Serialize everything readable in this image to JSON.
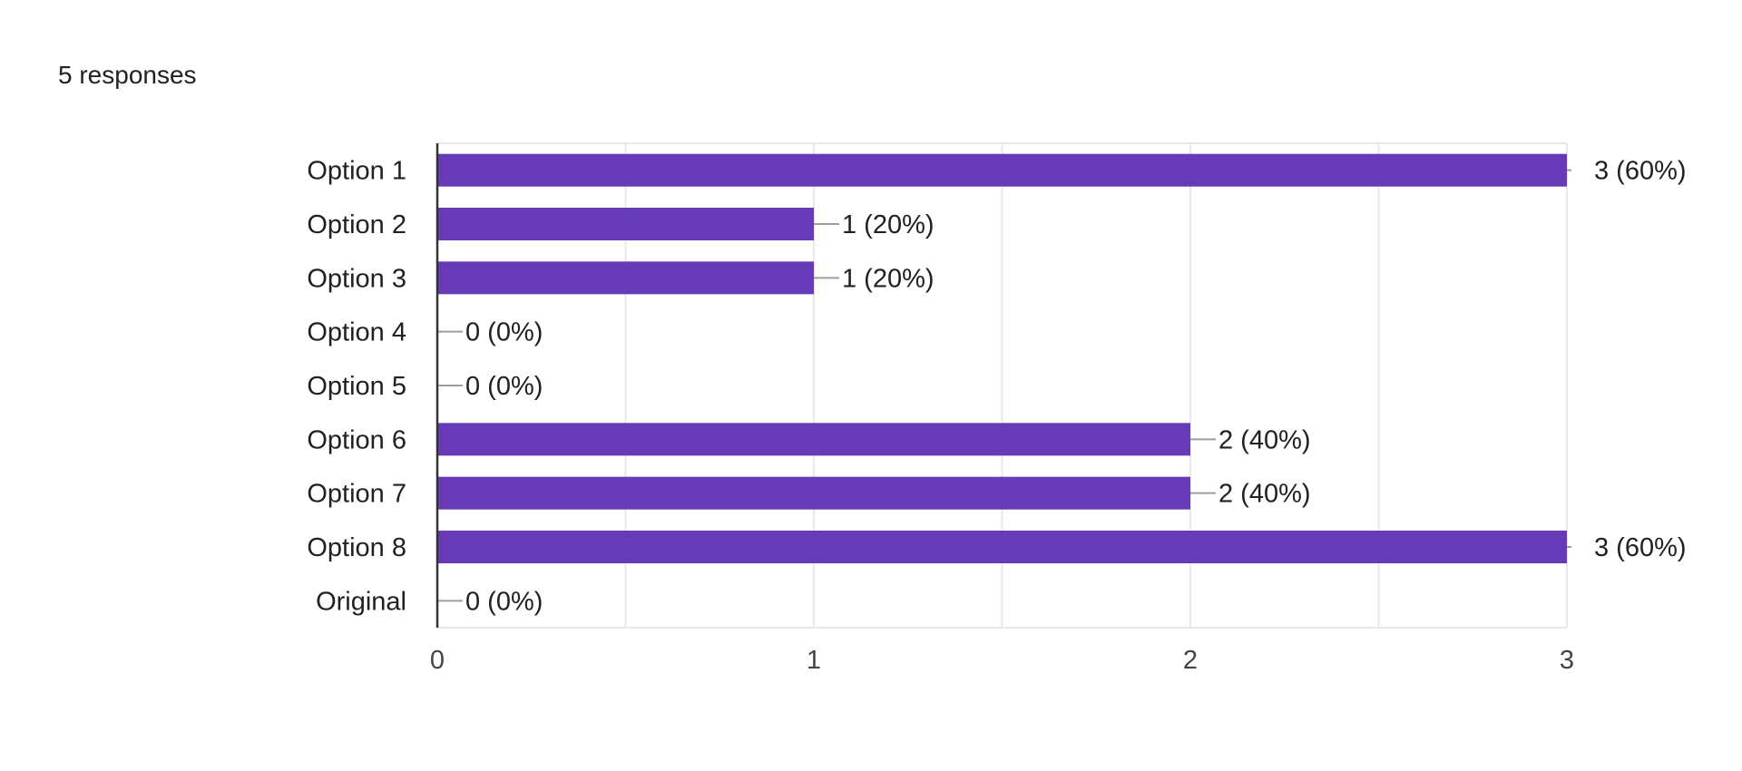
{
  "summary": {
    "responses_label": "5 responses"
  },
  "colors": {
    "bar": "#673ab7",
    "grid": "#e8e8e8",
    "axis": "#333333",
    "leader": "#9e9e9e"
  },
  "chart_data": {
    "type": "bar",
    "orientation": "horizontal",
    "categories": [
      "Option 1",
      "Option 2",
      "Option 3",
      "Option 4",
      "Option 5",
      "Option 6",
      "Option 7",
      "Option 8",
      "Original"
    ],
    "values": [
      3,
      1,
      1,
      0,
      0,
      2,
      2,
      3,
      0
    ],
    "value_labels": [
      "3 (60%)",
      "1 (20%)",
      "1 (20%)",
      "0 (0%)",
      "0 (0%)",
      "2 (40%)",
      "2 (40%)",
      "3 (60%)",
      "0 (0%)"
    ],
    "xlim": [
      0,
      3
    ],
    "x_ticks": [
      0,
      1,
      2,
      3
    ],
    "x_tick_labels": [
      "0",
      "1",
      "2",
      "3"
    ],
    "grid": true,
    "title": "",
    "xlabel": "",
    "ylabel": ""
  }
}
